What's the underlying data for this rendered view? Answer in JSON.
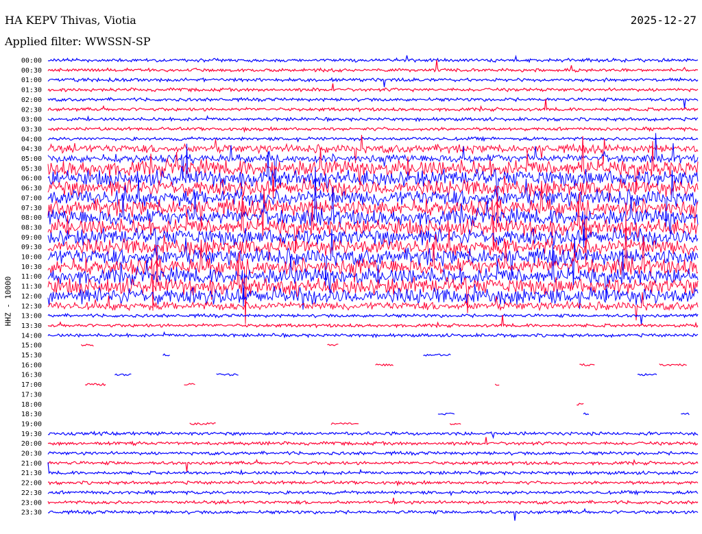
{
  "header": {
    "station": "HA KEPV Thivas, Viotia",
    "date": "2025-12-27",
    "filter": "Applied filter: WWSSN-SP"
  },
  "chart_data": {
    "type": "line",
    "title": "HA KEPV Thivas, Viotia",
    "ylabel": "HHZ - 10000",
    "trace_colors": [
      "#0000ff",
      "#ff0033"
    ],
    "rows": [
      {
        "time": "00:00",
        "activity": 1
      },
      {
        "time": "00:30",
        "activity": 1
      },
      {
        "time": "01:00",
        "activity": 1
      },
      {
        "time": "01:30",
        "activity": 1
      },
      {
        "time": "02:00",
        "activity": 1
      },
      {
        "time": "02:30",
        "activity": 1
      },
      {
        "time": "03:00",
        "activity": 1
      },
      {
        "time": "03:30",
        "activity": 1
      },
      {
        "time": "04:00",
        "activity": 1
      },
      {
        "time": "04:30",
        "activity": 2
      },
      {
        "time": "05:00",
        "activity": 2
      },
      {
        "time": "05:30",
        "activity": 3
      },
      {
        "time": "06:00",
        "activity": 3
      },
      {
        "time": "06:30",
        "activity": 3
      },
      {
        "time": "07:00",
        "activity": 3
      },
      {
        "time": "07:30",
        "activity": 3
      },
      {
        "time": "08:00",
        "activity": 3
      },
      {
        "time": "08:30",
        "activity": 3
      },
      {
        "time": "09:00",
        "activity": 3
      },
      {
        "time": "09:30",
        "activity": 3
      },
      {
        "time": "10:00",
        "activity": 3
      },
      {
        "time": "10:30",
        "activity": 3
      },
      {
        "time": "11:00",
        "activity": 3
      },
      {
        "time": "11:30",
        "activity": 3
      },
      {
        "time": "12:00",
        "activity": 3
      },
      {
        "time": "12:30",
        "activity": 2
      },
      {
        "time": "13:00",
        "activity": 1
      },
      {
        "time": "13:30",
        "activity": 1
      },
      {
        "time": "14:00",
        "activity": 1
      },
      {
        "time": "15:00",
        "activity": 0
      },
      {
        "time": "15:30",
        "activity": 0
      },
      {
        "time": "16:00",
        "activity": 0
      },
      {
        "time": "16:30",
        "activity": 0
      },
      {
        "time": "17:00",
        "activity": 0
      },
      {
        "time": "17:30",
        "activity": 0
      },
      {
        "time": "18:00",
        "activity": 0
      },
      {
        "time": "18:30",
        "activity": 0
      },
      {
        "time": "19:00",
        "activity": 0
      },
      {
        "time": "19:30",
        "activity": 1
      },
      {
        "time": "20:00",
        "activity": 1
      },
      {
        "time": "20:30",
        "activity": 1
      },
      {
        "time": "21:00",
        "activity": 1
      },
      {
        "time": "21:30",
        "activity": 1
      },
      {
        "time": "22:00",
        "activity": 1
      },
      {
        "time": "22:30",
        "activity": 1
      },
      {
        "time": "23:00",
        "activity": 1
      },
      {
        "time": "23:30",
        "activity": 1
      }
    ]
  }
}
